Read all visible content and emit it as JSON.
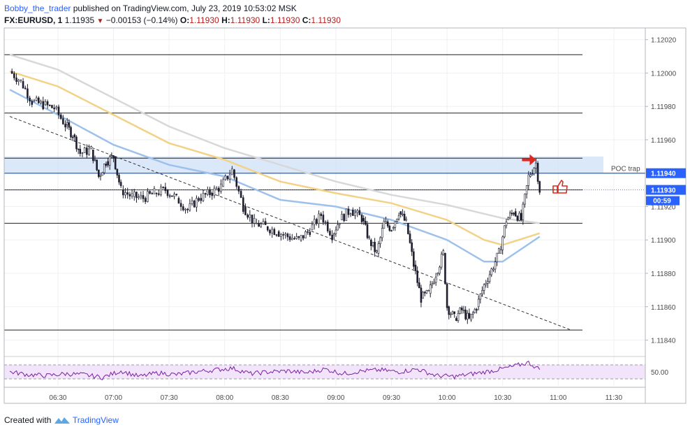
{
  "header": {
    "author": "Bobby_the_trader",
    "published_text": "published on TradingView.com, July 23, 2019 10:53:02 MSK",
    "symbol": "FX:EURUSD, 1",
    "last_price": "1.11935",
    "change": "−0.00153 (−0.14%)",
    "o_label": "O:",
    "o_value": "1.11930",
    "h_label": "H:",
    "h_value": "1.11930",
    "l_label": "L:",
    "l_value": "1.11930",
    "c_label": "C:",
    "c_value": "1.11930"
  },
  "footer": {
    "created_with": "Created with",
    "brand": "TradingView"
  },
  "chart_data": [
    {
      "type": "candlestick",
      "x_ticks": [
        "06:30",
        "07:00",
        "07:30",
        "08:00",
        "08:30",
        "09:00",
        "09:30",
        "10:00",
        "10:30",
        "11:00",
        "11:30"
      ],
      "y_ticks": [
        "1.11840",
        "1.11860",
        "1.11880",
        "1.11900",
        "1.11920",
        "1.11940",
        "1.11960",
        "1.11980",
        "1.12000",
        "1.12020"
      ],
      "ylim": [
        1.11831,
        1.12027
      ],
      "price_tags": [
        {
          "label": "1.11940",
          "value": 1.1194,
          "color": "#2962ff"
        },
        {
          "label": "1.11930",
          "value": 1.1193,
          "color": "#2962ff"
        }
      ],
      "countdown": "00:59",
      "poc_label": "POC trap",
      "poc_zone": [
        1.1194,
        1.1195
      ],
      "horizontal_levels": [
        1.12011,
        1.11976,
        1.11949,
        1.1194,
        1.1193,
        1.1191,
        1.11846
      ],
      "trendline": {
        "from": [
          "06:04",
          1.11974
        ],
        "to": [
          "11:07",
          1.11846
        ]
      },
      "moving_averages": [
        {
          "color": "#d8d8d8",
          "points": [
            [
              "06:04",
              1.12011
            ],
            [
              "06:30",
              1.12002
            ],
            [
              "07:00",
              1.11985
            ],
            [
              "07:30",
              1.11968
            ],
            [
              "08:00",
              1.11955
            ],
            [
              "08:30",
              1.11945
            ],
            [
              "09:00",
              1.11935
            ],
            [
              "09:30",
              1.11927
            ],
            [
              "10:00",
              1.11921
            ],
            [
              "10:30",
              1.11913
            ],
            [
              "10:50",
              1.1191
            ]
          ]
        },
        {
          "color": "#f3d287",
          "points": [
            [
              "06:04",
              1.12001
            ],
            [
              "06:30",
              1.11992
            ],
            [
              "07:00",
              1.11975
            ],
            [
              "07:30",
              1.11958
            ],
            [
              "08:00",
              1.11948
            ],
            [
              "08:30",
              1.11935
            ],
            [
              "09:00",
              1.11928
            ],
            [
              "09:30",
              1.11922
            ],
            [
              "10:00",
              1.11912
            ],
            [
              "10:20",
              1.119
            ],
            [
              "10:30",
              1.11897
            ],
            [
              "10:50",
              1.11904
            ]
          ]
        },
        {
          "color": "#9ec1ec",
          "points": [
            [
              "06:04",
              1.1199
            ],
            [
              "06:30",
              1.11975
            ],
            [
              "07:00",
              1.11957
            ],
            [
              "07:30",
              1.11945
            ],
            [
              "08:00",
              1.11938
            ],
            [
              "08:30",
              1.11924
            ],
            [
              "09:00",
              1.1192
            ],
            [
              "09:30",
              1.11912
            ],
            [
              "10:00",
              1.119
            ],
            [
              "10:20",
              1.11887
            ],
            [
              "10:30",
              1.11887
            ],
            [
              "10:50",
              1.11902
            ]
          ]
        }
      ],
      "candles": [
        [
          "06:04",
          1.12001
        ],
        [
          "06:10",
          1.11995
        ],
        [
          "06:16",
          1.11983
        ],
        [
          "06:22",
          1.11981
        ],
        [
          "06:28",
          1.11979
        ],
        [
          "06:34",
          1.11969
        ],
        [
          "06:38",
          1.11963
        ],
        [
          "06:42",
          1.11952
        ],
        [
          "06:48",
          1.11954
        ],
        [
          "06:52",
          1.11938
        ],
        [
          "06:56",
          1.11947
        ],
        [
          "07:00",
          1.1195
        ],
        [
          "07:04",
          1.1193
        ],
        [
          "07:10",
          1.11926
        ],
        [
          "07:16",
          1.11925
        ],
        [
          "07:22",
          1.11928
        ],
        [
          "07:28",
          1.1193
        ],
        [
          "07:34",
          1.11925
        ],
        [
          "07:40",
          1.11918
        ],
        [
          "07:46",
          1.11925
        ],
        [
          "07:52",
          1.11928
        ],
        [
          "07:58",
          1.11932
        ],
        [
          "08:04",
          1.11942
        ],
        [
          "08:10",
          1.1192
        ],
        [
          "08:16",
          1.1191
        ],
        [
          "08:22",
          1.11908
        ],
        [
          "08:28",
          1.11905
        ],
        [
          "08:34",
          1.11902
        ],
        [
          "08:40",
          1.119
        ],
        [
          "08:46",
          1.11906
        ],
        [
          "08:52",
          1.11915
        ],
        [
          "08:58",
          1.11903
        ],
        [
          "09:02",
          1.11912
        ],
        [
          "09:08",
          1.11918
        ],
        [
          "09:14",
          1.11913
        ],
        [
          "09:18",
          1.119
        ],
        [
          "09:22",
          1.11892
        ],
        [
          "09:26",
          1.1191
        ],
        [
          "09:30",
          1.11907
        ],
        [
          "09:34",
          1.11917
        ],
        [
          "09:38",
          1.1191
        ],
        [
          "09:42",
          1.11885
        ],
        [
          "09:46",
          1.11865
        ],
        [
          "09:50",
          1.11868
        ],
        [
          "09:54",
          1.1188
        ],
        [
          "09:58",
          1.11892
        ],
        [
          "10:00",
          1.1186
        ],
        [
          "10:04",
          1.11853
        ],
        [
          "10:08",
          1.11858
        ],
        [
          "10:12",
          1.11852
        ],
        [
          "10:16",
          1.1186
        ],
        [
          "10:20",
          1.11873
        ],
        [
          "10:24",
          1.11882
        ],
        [
          "10:28",
          1.11892
        ],
        [
          "10:32",
          1.11912
        ],
        [
          "10:36",
          1.11917
        ],
        [
          "10:40",
          1.11912
        ],
        [
          "10:44",
          1.11938
        ],
        [
          "10:48",
          1.11946
        ],
        [
          "10:50",
          1.1193
        ]
      ]
    },
    {
      "type": "line",
      "name": "oscillator",
      "y_ticks": [
        "50.00"
      ],
      "band": [
        35,
        65
      ],
      "ylim": [
        20,
        80
      ],
      "x": [
        "06:04",
        "06:14",
        "06:24",
        "06:34",
        "06:44",
        "06:54",
        "07:04",
        "07:14",
        "07:24",
        "07:34",
        "07:44",
        "07:54",
        "08:04",
        "08:14",
        "08:24",
        "08:34",
        "08:44",
        "08:54",
        "09:04",
        "09:14",
        "09:24",
        "09:34",
        "09:44",
        "09:54",
        "10:04",
        "10:14",
        "10:24",
        "10:34",
        "10:44",
        "10:50"
      ],
      "values": [
        50,
        44,
        42,
        46,
        44,
        38,
        52,
        40,
        48,
        44,
        50,
        54,
        58,
        46,
        50,
        52,
        48,
        56,
        46,
        52,
        54,
        50,
        56,
        42,
        40,
        46,
        52,
        60,
        70,
        55
      ]
    }
  ]
}
